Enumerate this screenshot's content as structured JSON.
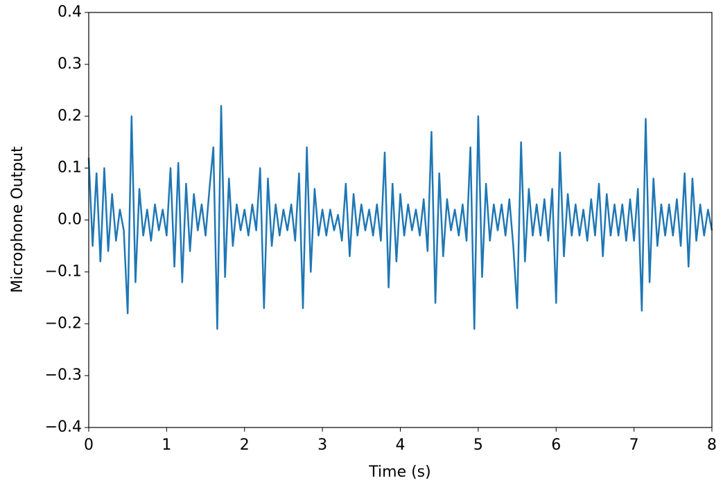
{
  "chart_data": {
    "type": "line",
    "xlabel": "Time (s)",
    "ylabel": "Microphone Output",
    "x": [
      0,
      0.05,
      0.1,
      0.15,
      0.2,
      0.25,
      0.3,
      0.35,
      0.4,
      0.45,
      0.5,
      0.55,
      0.6,
      0.65,
      0.7,
      0.75,
      0.8,
      0.85,
      0.9,
      0.95,
      1,
      1.05,
      1.1,
      1.15,
      1.2,
      1.25,
      1.3,
      1.35,
      1.4,
      1.45,
      1.5,
      1.55,
      1.6,
      1.65,
      1.7,
      1.75,
      1.8,
      1.85,
      1.9,
      1.95,
      2,
      2.05,
      2.1,
      2.15,
      2.2,
      2.25,
      2.3,
      2.35,
      2.4,
      2.45,
      2.5,
      2.55,
      2.6,
      2.65,
      2.7,
      2.75,
      2.8,
      2.85,
      2.9,
      2.95,
      3,
      3.05,
      3.1,
      3.15,
      3.2,
      3.25,
      3.3,
      3.35,
      3.4,
      3.45,
      3.5,
      3.55,
      3.6,
      3.65,
      3.7,
      3.75,
      3.8,
      3.85,
      3.9,
      3.95,
      4,
      4.05,
      4.1,
      4.15,
      4.2,
      4.25,
      4.3,
      4.35,
      4.4,
      4.45,
      4.5,
      4.55,
      4.6,
      4.65,
      4.7,
      4.75,
      4.8,
      4.85,
      4.9,
      4.95,
      5,
      5.05,
      5.1,
      5.15,
      5.2,
      5.25,
      5.3,
      5.35,
      5.4,
      5.45,
      5.5,
      5.55,
      5.6,
      5.65,
      5.7,
      5.75,
      5.8,
      5.85,
      5.9,
      5.95,
      6,
      6.05,
      6.1,
      6.15,
      6.2,
      6.25,
      6.3,
      6.35,
      6.4,
      6.45,
      6.5,
      6.55,
      6.6,
      6.65,
      6.7,
      6.75,
      6.8,
      6.85,
      6.9,
      6.95,
      7,
      7.05,
      7.1,
      7.15,
      7.2,
      7.25,
      7.3,
      7.35,
      7.4,
      7.45,
      7.5,
      7.55,
      7.6,
      7.65,
      7.7,
      7.75,
      7.8,
      7.85,
      7.9,
      7.95,
      8
    ],
    "series": [
      {
        "color": "#1f77b4",
        "values": [
          0.12,
          -0.05,
          0.09,
          -0.08,
          0.1,
          -0.06,
          0.05,
          -0.04,
          0.02,
          -0.02,
          -0.18,
          0.2,
          -0.12,
          0.06,
          -0.03,
          0.02,
          -0.04,
          0.03,
          -0.02,
          0.02,
          -0.03,
          0.1,
          -0.09,
          0.11,
          -0.12,
          0.07,
          -0.06,
          0.05,
          -0.02,
          0.03,
          -0.03,
          0.06,
          0.14,
          -0.21,
          0.22,
          -0.11,
          0.08,
          -0.05,
          0.03,
          -0.02,
          0.02,
          -0.03,
          0.03,
          -0.02,
          0.1,
          -0.17,
          0.08,
          -0.05,
          0.03,
          -0.03,
          0.02,
          -0.02,
          0.03,
          -0.04,
          0.09,
          -0.17,
          0.14,
          -0.1,
          0.06,
          -0.03,
          0.02,
          -0.03,
          0.02,
          -0.02,
          0.01,
          -0.04,
          0.07,
          -0.07,
          0.05,
          -0.03,
          0.03,
          -0.02,
          0.02,
          -0.03,
          0.03,
          -0.04,
          0.13,
          -0.13,
          0.07,
          -0.08,
          0.05,
          -0.03,
          0.03,
          -0.02,
          0.02,
          -0.03,
          0.04,
          -0.06,
          0.17,
          -0.16,
          0.09,
          -0.07,
          0.04,
          -0.02,
          0.02,
          -0.03,
          0.03,
          -0.04,
          0.14,
          -0.21,
          0.2,
          -0.11,
          0.07,
          -0.04,
          0.03,
          -0.02,
          0.03,
          -0.03,
          0.04,
          -0.05,
          -0.17,
          0.15,
          -0.08,
          0.06,
          -0.03,
          0.03,
          -0.03,
          0.04,
          -0.04,
          0.06,
          -0.16,
          0.13,
          -0.07,
          0.05,
          -0.03,
          0.03,
          -0.03,
          0.02,
          -0.04,
          0.04,
          -0.03,
          0.07,
          -0.07,
          0.05,
          -0.03,
          0.03,
          -0.03,
          0.03,
          -0.04,
          0.04,
          -0.04,
          0.06,
          -0.175,
          0.195,
          -0.12,
          0.08,
          -0.05,
          0.03,
          -0.03,
          0.03,
          -0.03,
          0.04,
          -0.05,
          0.09,
          -0.09,
          0.08,
          -0.04,
          0.03,
          -0.03,
          0.02,
          -0.02
        ]
      }
    ],
    "xlim": [
      0,
      8
    ],
    "xticks": [
      0,
      1,
      2,
      3,
      4,
      5,
      6,
      7,
      8
    ],
    "ylim": [
      -0.4,
      0.4
    ],
    "yticks": [
      {
        "value": -0.4,
        "label": "−0.4"
      },
      {
        "value": -0.3,
        "label": "−0.3"
      },
      {
        "value": -0.2,
        "label": "−0.2"
      },
      {
        "value": -0.1,
        "label": "−0.1"
      },
      {
        "value": 0,
        "label": "0.0"
      },
      0.1,
      0.2,
      0.3,
      0.4
    ],
    "grid": false
  }
}
